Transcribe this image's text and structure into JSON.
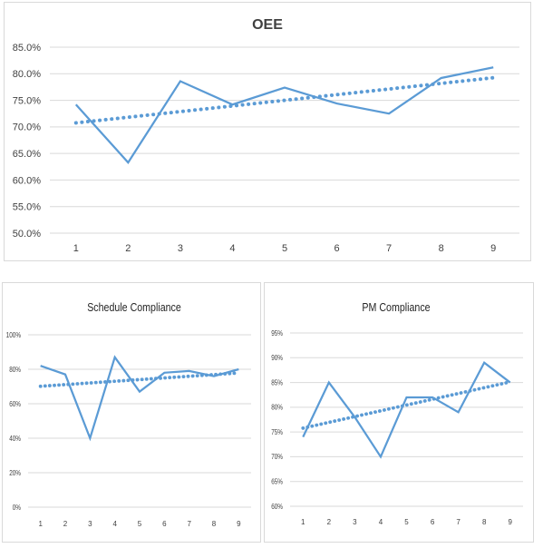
{
  "chart_data": [
    {
      "type": "line",
      "title": "OEE",
      "xlabel": "",
      "ylabel": "",
      "categories": [
        "1",
        "2",
        "3",
        "4",
        "5",
        "6",
        "7",
        "8",
        "9"
      ],
      "values": [
        74.2,
        63.3,
        78.6,
        74.2,
        77.4,
        74.4,
        72.5,
        79.2,
        81.2
      ],
      "yticks": [
        "50.0%",
        "55.0%",
        "60.0%",
        "65.0%",
        "70.0%",
        "75.0%",
        "80.0%",
        "85.0%"
      ],
      "ylim": [
        50,
        85
      ],
      "trendline": "linear",
      "grid": true,
      "legend": "none",
      "color": "#5b9bd5"
    },
    {
      "type": "line",
      "title": "Schedule Compliance",
      "xlabel": "",
      "ylabel": "",
      "categories": [
        "1",
        "2",
        "3",
        "4",
        "5",
        "6",
        "7",
        "8",
        "9"
      ],
      "values": [
        82,
        77,
        40,
        87,
        67,
        78,
        79,
        76,
        80
      ],
      "yticks": [
        "0%",
        "20%",
        "40%",
        "60%",
        "80%",
        "100%"
      ],
      "ylim": [
        0,
        100
      ],
      "trendline": "linear",
      "grid": true,
      "legend": "none",
      "color": "#5b9bd5"
    },
    {
      "type": "line",
      "title": "PM Compliance",
      "xlabel": "",
      "ylabel": "",
      "categories": [
        "1",
        "2",
        "3",
        "4",
        "5",
        "6",
        "7",
        "8",
        "9"
      ],
      "values": [
        74,
        85,
        78,
        70,
        82,
        82,
        79,
        89,
        85
      ],
      "yticks": [
        "60%",
        "65%",
        "70%",
        "75%",
        "80%",
        "85%",
        "90%",
        "95%"
      ],
      "ylim": [
        60,
        95
      ],
      "trendline": "linear",
      "grid": true,
      "legend": "none",
      "color": "#5b9bd5"
    }
  ]
}
